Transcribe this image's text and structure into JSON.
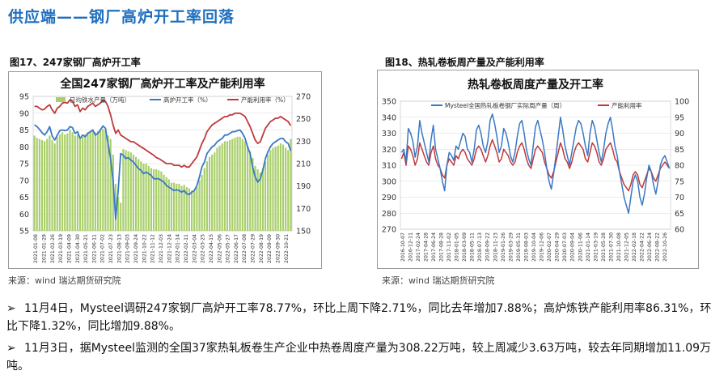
{
  "slide_title": "供应端——钢厂高炉开工率回落",
  "figure1": {
    "caption": "图17、247家钢厂高炉开工率",
    "source": "来源：wind   瑞达期货研究院"
  },
  "figure2": {
    "caption": "图18、热轧卷板周产量及产能利用率",
    "source": "来源：wind   瑞达期货研究院"
  },
  "bullets": [
    "11月4日，Mysteel调研247家钢厂高炉开工率78.77%，环比上周下降2.71%，同比去年增加7.88%；高炉炼铁产能利用率86.31%，环比下降1.32%，同比增加9.88%。",
    "11月3日，据Mysteel监测的全国37家热轧板卷生产企业中热卷周度产量为308.22万吨，较上周减少3.63万吨，较去年同期增加11.09万吨。"
  ],
  "chart_data": [
    {
      "type": "bar+line",
      "title": "全国247家钢厂高炉开工率及产能利用率",
      "legend": [
        "日均铁水产量（万吨）",
        "高炉开工率（%）",
        "产能利用率（%）"
      ],
      "legend_placement": "top",
      "left_axis": {
        "min": 55,
        "max": 95,
        "ticks": [
          "55",
          "60",
          "65",
          "70",
          "75",
          "80",
          "85",
          "90",
          "95"
        ]
      },
      "right_axis": {
        "min": 150,
        "max": 270,
        "ticks": [
          "150",
          "170",
          "190",
          "210",
          "230",
          "250",
          "270"
        ]
      },
      "x_ticks": [
        "2021-01-08",
        "2021-01-29",
        "2021-02-26",
        "2021-03-19",
        "2021-04-09",
        "2021-04-30",
        "2021-05-21",
        "2021-06-11",
        "2021-07-02",
        "2021-07-23",
        "2021-08-13",
        "2021-09-03",
        "2021-09-24",
        "2021-10-22",
        "2021-11-12",
        "2021-12-03",
        "2021-12-24",
        "2022-01-14",
        "2022-02-11",
        "2022-03-04",
        "2022-03-25",
        "2022-04-15",
        "2022-05-06",
        "2022-05-27",
        "2022-06-17",
        "2022-07-08",
        "2022-07-29",
        "2022-08-19",
        "2022-09-09",
        "2022-09-30",
        "2022-10-21"
      ],
      "colors": {
        "bar": "#a9cf6b",
        "blast": "#3a78c3",
        "util": "#c0393b"
      },
      "hot_metal": [
        235,
        233,
        232,
        231,
        230,
        232,
        235,
        231,
        228,
        234,
        236,
        238,
        236,
        237,
        240,
        238,
        235,
        236,
        232,
        234,
        236,
        238,
        239,
        240,
        238,
        239,
        240,
        241,
        240,
        235,
        232,
        218,
        192,
        180,
        175,
        223,
        222,
        221,
        220,
        218,
        216,
        214,
        212,
        210,
        210,
        208,
        206,
        205,
        205,
        204,
        203,
        200,
        198,
        196,
        193,
        193,
        192,
        192,
        190,
        191,
        189,
        188,
        186,
        186,
        189,
        195,
        200,
        206,
        212,
        216,
        218,
        220,
        224,
        226,
        228,
        230,
        230,
        231,
        232,
        233,
        234,
        234,
        232,
        230,
        225,
        221,
        215,
        208,
        205,
        202,
        206,
        212,
        218,
        222,
        224,
        225,
        226,
        228,
        227,
        224,
        222,
        232
      ],
      "blast": [
        86.5,
        86.0,
        85.2,
        84.2,
        83.5,
        84.5,
        86.0,
        83.2,
        82.0,
        83.5,
        84.8,
        85.0,
        84.8,
        85.0,
        86.0,
        85.7,
        84.0,
        84.5,
        82.5,
        83.5,
        83.0,
        84.0,
        84.5,
        85.0,
        83.5,
        84.0,
        85.0,
        86.2,
        85.5,
        81.0,
        76.5,
        70.0,
        58.5,
        67.0,
        78.0,
        77.5,
        76.5,
        76.8,
        76.0,
        75.5,
        74.5,
        73.5,
        73.0,
        72.0,
        72.5,
        72.0,
        71.5,
        70.5,
        70.5,
        70.5,
        70.0,
        69.5,
        68.5,
        68.0,
        67.5,
        67.0,
        67.2,
        67.0,
        66.5,
        67.0,
        66.0,
        65.8,
        66.5,
        67.0,
        68.5,
        71.0,
        74.0,
        75.5,
        78.0,
        79.0,
        80.0,
        80.5,
        81.5,
        82.0,
        82.5,
        83.5,
        83.5,
        84.0,
        84.5,
        84.5,
        84.8,
        85.0,
        84.0,
        82.5,
        80.0,
        78.0,
        74.0,
        71.0,
        69.5,
        70.5,
        73.0,
        76.5,
        78.5,
        80.0,
        81.0,
        81.5,
        82.0,
        82.5,
        82.5,
        81.5,
        81.0,
        78.8
      ],
      "util": [
        92.0,
        92.0,
        91.5,
        91.0,
        91.2,
        92.0,
        92.5,
        91.0,
        90.0,
        91.5,
        92.0,
        93.0,
        93.2,
        93.0,
        94.0,
        93.5,
        92.0,
        92.5,
        90.5,
        91.5,
        91.0,
        92.0,
        92.5,
        93.0,
        92.0,
        92.5,
        93.0,
        93.8,
        93.5,
        92.0,
        89.5,
        86.5,
        84.0,
        85.0,
        83.5,
        83.0,
        82.5,
        82.0,
        81.5,
        81.5,
        81.0,
        80.5,
        80.0,
        79.5,
        79.0,
        78.5,
        78.0,
        77.5,
        76.8,
        76.5,
        76.0,
        75.5,
        75.0,
        75.0,
        75.0,
        74.5,
        74.5,
        74.5,
        74.0,
        74.5,
        74.0,
        74.0,
        75.0,
        76.0,
        77.0,
        79.0,
        81.0,
        82.5,
        84.5,
        85.5,
        86.5,
        87.0,
        87.5,
        88.0,
        88.5,
        89.0,
        89.0,
        89.5,
        89.5,
        90.0,
        90.0,
        90.0,
        89.5,
        89.0,
        87.5,
        86.0,
        84.0,
        82.0,
        81.0,
        81.5,
        83.5,
        85.5,
        86.5,
        87.5,
        88.0,
        88.5,
        88.5,
        89.0,
        88.5,
        88.0,
        87.5,
        86.3
      ]
    },
    {
      "type": "line",
      "title": "热轧卷板周度产量及开工率",
      "legend": [
        "Mysteel全国热轧板卷钢厂实际周产量（周）",
        "产能利用率"
      ],
      "legend_placement": "top",
      "left_axis": {
        "min": 270,
        "max": 350,
        "ticks": [
          "270",
          "280",
          "290",
          "300",
          "310",
          "320",
          "330",
          "340",
          "350"
        ]
      },
      "right_axis": {
        "min": 60,
        "max": 100,
        "ticks": [
          "60",
          "65",
          "70",
          "75",
          "80",
          "85",
          "90",
          "95",
          "100"
        ]
      },
      "x_ticks": [
        "2016-10-07",
        "2016-12-11",
        "2017-02-24",
        "2017-04-28",
        "2017-06-24",
        "2017-08-28",
        "2017-11-02",
        "2018-01-05",
        "2018-03-09",
        "2018-05-11",
        "2018-07-13",
        "2018-09-22",
        "2018-11-23",
        "2019-01-26",
        "2019-03-29",
        "2019-05-31",
        "2019-08-03",
        "2019-10-04",
        "2019-12-06",
        "2020-02-07",
        "2020-04-29",
        "2020-07-03",
        "2020-09-04",
        "2020-11-06",
        "2021-01-14",
        "2021-03-19",
        "2021-05-28",
        "2021-07-30",
        "2021-10-08",
        "2021-12-05",
        "2022-02-18",
        "2022-04-22",
        "2022-06-24",
        "2022-08-22",
        "2022-10-26"
      ],
      "colors": {
        "output": "#3a78c3",
        "util": "#c0393b"
      },
      "output": [
        318,
        320,
        312,
        333,
        330,
        325,
        315,
        322,
        338,
        330,
        324,
        318,
        312,
        326,
        335,
        320,
        314,
        308,
        300,
        294,
        310,
        318,
        316,
        313,
        322,
        320,
        325,
        330,
        328,
        320,
        318,
        312,
        320,
        332,
        335,
        330,
        322,
        318,
        325,
        338,
        342,
        336,
        328,
        318,
        322,
        333,
        330,
        324,
        316,
        312,
        318,
        328,
        336,
        338,
        330,
        320,
        314,
        310,
        322,
        334,
        338,
        332,
        326,
        318,
        308,
        300,
        295,
        305,
        316,
        328,
        340,
        332,
        322,
        316,
        310,
        318,
        326,
        334,
        338,
        336,
        330,
        322,
        316,
        330,
        338,
        334,
        326,
        318,
        312,
        320,
        330,
        336,
        340,
        332,
        322,
        316,
        306,
        298,
        290,
        285,
        280,
        290,
        300,
        304,
        300,
        290,
        285,
        292,
        302,
        310,
        306,
        298,
        292,
        300,
        310,
        314,
        316,
        312,
        308
      ],
      "util": [
        82,
        84,
        80,
        86,
        85,
        83,
        80,
        82,
        87,
        85,
        83,
        81,
        80,
        84,
        86,
        82,
        80,
        79,
        77,
        76,
        80,
        82,
        81,
        80,
        83,
        82,
        84,
        85,
        84,
        82,
        81,
        80,
        82,
        85,
        86,
        85,
        83,
        81,
        83,
        86,
        88,
        86,
        84,
        81,
        82,
        85,
        84,
        83,
        81,
        80,
        81,
        84,
        86,
        87,
        85,
        82,
        80,
        79,
        82,
        85,
        86,
        85,
        84,
        81,
        79,
        77,
        76,
        78,
        81,
        84,
        87,
        85,
        82,
        81,
        79,
        81,
        84,
        86,
        87,
        86,
        85,
        82,
        81,
        84,
        87,
        86,
        84,
        81,
        80,
        82,
        85,
        86,
        87,
        85,
        82,
        81,
        78,
        76,
        74,
        73,
        72,
        74,
        77,
        78,
        77,
        74,
        73,
        75,
        77,
        79,
        78,
        76,
        75,
        77,
        79,
        80,
        81,
        80,
        79
      ]
    }
  ]
}
